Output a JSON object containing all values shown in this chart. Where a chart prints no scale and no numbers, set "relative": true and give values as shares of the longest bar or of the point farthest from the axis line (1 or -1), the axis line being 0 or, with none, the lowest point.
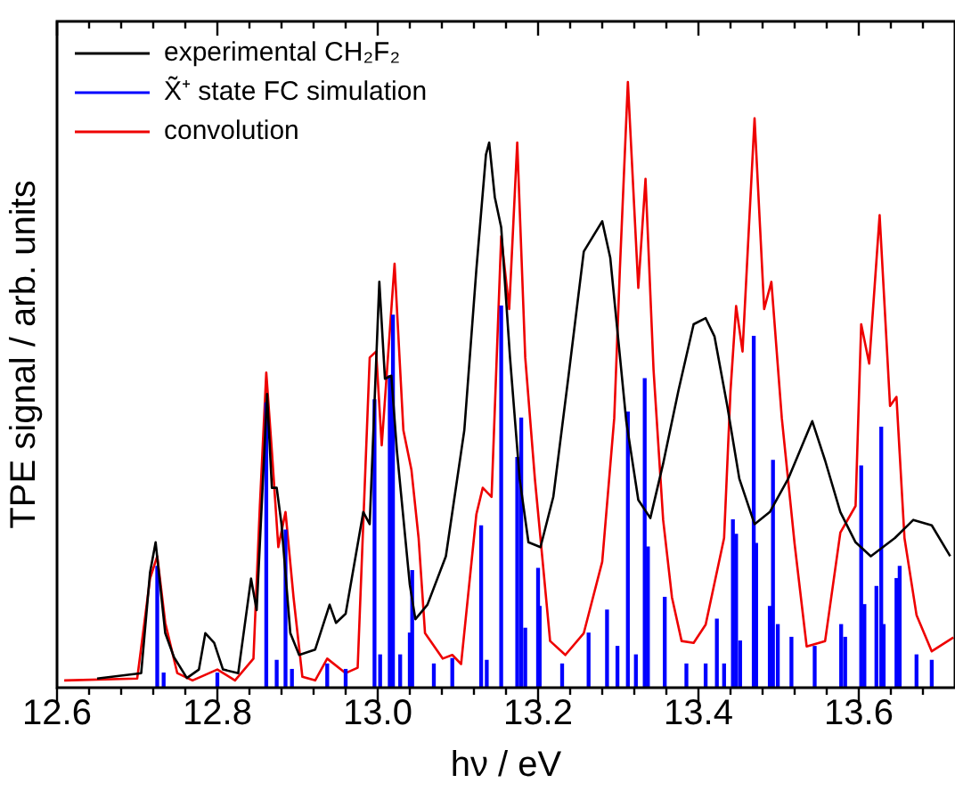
{
  "chart_data": {
    "type": "line",
    "relative": true,
    "xlabel": "hν / eV",
    "ylabel": "TPE signal / arb. units",
    "xlim": [
      12.6,
      13.72
    ],
    "xticks": [
      {
        "value": 12.6,
        "label": "12.6"
      },
      {
        "value": 12.64,
        "label": null
      },
      {
        "value": 12.68,
        "label": null
      },
      {
        "value": 12.72,
        "label": null
      },
      {
        "value": 12.76,
        "label": null
      },
      {
        "value": 12.8,
        "label": "12.8"
      },
      {
        "value": 12.84,
        "label": null
      },
      {
        "value": 12.88,
        "label": null
      },
      {
        "value": 12.92,
        "label": null
      },
      {
        "value": 12.96,
        "label": null
      },
      {
        "value": 13,
        "label": "13.0"
      },
      {
        "value": 13.04,
        "label": null
      },
      {
        "value": 13.08,
        "label": null
      },
      {
        "value": 13.12,
        "label": null
      },
      {
        "value": 13.16,
        "label": null
      },
      {
        "value": 13.2,
        "label": "13.2"
      },
      {
        "value": 13.24,
        "label": null
      },
      {
        "value": 13.28,
        "label": null
      },
      {
        "value": 13.32,
        "label": null
      },
      {
        "value": 13.36,
        "label": null
      },
      {
        "value": 13.4,
        "label": "13.4"
      },
      {
        "value": 13.44,
        "label": null
      },
      {
        "value": 13.48,
        "label": null
      },
      {
        "value": 13.52,
        "label": null
      },
      {
        "value": 13.56,
        "label": null
      },
      {
        "value": 13.6,
        "label": "13.6"
      },
      {
        "value": 13.64,
        "label": null
      },
      {
        "value": 13.68,
        "label": null
      }
    ],
    "grid": false,
    "legend": "top left",
    "marker": "none",
    "line_style": "solid",
    "series": [
      {
        "name": "experimental CH₂F₂",
        "color": "#000000",
        "x": [
          12.65,
          12.705,
          12.716,
          12.723,
          12.735,
          12.746,
          12.762,
          12.777,
          12.785,
          12.796,
          12.807,
          12.826,
          12.842,
          12.849,
          12.862,
          12.868,
          12.874,
          12.88,
          12.891,
          12.902,
          12.922,
          12.94,
          12.948,
          12.96,
          12.982,
          12.99,
          13.002,
          13.009,
          13.017,
          13.024,
          13.04,
          13.047,
          13.062,
          13.085,
          13.108,
          13.123,
          13.135,
          13.139,
          13.146,
          13.154,
          13.165,
          13.177,
          13.188,
          13.203,
          13.219,
          13.238,
          13.257,
          13.28,
          13.29,
          13.31,
          13.325,
          13.34,
          13.356,
          13.375,
          13.394,
          13.409,
          13.42,
          13.436,
          13.451,
          13.47,
          13.489,
          13.512,
          13.531,
          13.542,
          13.558,
          13.577,
          13.596,
          13.615,
          13.645,
          13.668,
          13.691,
          13.714
        ],
        "values": [
          0.015,
          0.024,
          0.19,
          0.24,
          0.09,
          0.05,
          0.016,
          0.03,
          0.09,
          0.074,
          0.03,
          0.024,
          0.18,
          0.128,
          0.485,
          0.33,
          0.33,
          0.27,
          0.09,
          0.054,
          0.063,
          0.137,
          0.107,
          0.122,
          0.29,
          0.27,
          0.67,
          0.51,
          0.515,
          0.39,
          0.17,
          0.113,
          0.137,
          0.217,
          0.425,
          0.69,
          0.88,
          0.9,
          0.81,
          0.76,
          0.545,
          0.345,
          0.24,
          0.232,
          0.315,
          0.515,
          0.72,
          0.77,
          0.71,
          0.44,
          0.31,
          0.28,
          0.37,
          0.49,
          0.6,
          0.61,
          0.58,
          0.465,
          0.345,
          0.27,
          0.29,
          0.345,
          0.405,
          0.44,
          0.375,
          0.29,
          0.24,
          0.217,
          0.247,
          0.277,
          0.268,
          0.217
        ]
      },
      {
        "name": "X̃⁺ state FC simulation",
        "type": "bar",
        "color": "#0000ff",
        "x": [
          12.725,
          12.733,
          12.8,
          12.861,
          12.874,
          12.885,
          12.893,
          12.937,
          12.96,
          12.996,
          13.003,
          13.015,
          13.019,
          13.028,
          13.04,
          13.043,
          13.07,
          13.093,
          13.129,
          13.136,
          13.154,
          13.174,
          13.179,
          13.184,
          13.2,
          13.202,
          13.23,
          13.263,
          13.286,
          13.299,
          13.312,
          13.322,
          13.333,
          13.337,
          13.358,
          13.385,
          13.409,
          13.423,
          13.432,
          13.443,
          13.447,
          13.452,
          13.469,
          13.472,
          13.489,
          13.493,
          13.499,
          13.516,
          13.545,
          13.578,
          13.583,
          13.603,
          13.607,
          13.622,
          13.628,
          13.631,
          13.647,
          13.651,
          13.672,
          13.691
        ],
        "values": [
          0.2,
          0.024,
          0.024,
          0.47,
          0.045,
          0.26,
          0.03,
          0.039,
          0.03,
          0.475,
          0.054,
          0.515,
          0.615,
          0.054,
          0.09,
          0.193,
          0.039,
          0.048,
          0.267,
          0.045,
          0.63,
          0.38,
          0.445,
          0.098,
          0.197,
          0.134,
          0.039,
          0.09,
          0.128,
          0.068,
          0.455,
          0.054,
          0.51,
          0.232,
          0.149,
          0.039,
          0.039,
          0.113,
          0.039,
          0.277,
          0.253,
          0.077,
          0.58,
          0.238,
          0.134,
          0.375,
          0.104,
          0.083,
          0.068,
          0.104,
          0.083,
          0.366,
          0.137,
          0.167,
          0.43,
          0.104,
          0.18,
          0.2,
          0.054,
          0.045
        ]
      },
      {
        "name": "convolution",
        "color": "#ee0000",
        "x": [
          12.609,
          12.7,
          12.716,
          12.725,
          12.735,
          12.75,
          12.769,
          12.8,
          12.822,
          12.845,
          12.853,
          12.861,
          12.868,
          12.876,
          12.885,
          12.895,
          12.906,
          12.922,
          12.937,
          12.96,
          12.975,
          12.99,
          12.998,
          13.005,
          13.021,
          13.032,
          13.042,
          13.051,
          13.059,
          13.081,
          13.093,
          13.104,
          13.123,
          13.131,
          13.142,
          13.154,
          13.164,
          13.174,
          13.184,
          13.196,
          13.203,
          13.215,
          13.234,
          13.257,
          13.28,
          13.295,
          13.302,
          13.312,
          13.325,
          13.334,
          13.344,
          13.356,
          13.367,
          13.379,
          13.394,
          13.409,
          13.432,
          13.44,
          13.447,
          13.455,
          13.47,
          13.482,
          13.491,
          13.504,
          13.52,
          13.535,
          13.558,
          13.577,
          13.596,
          13.603,
          13.613,
          13.626,
          13.639,
          13.647,
          13.657,
          13.672,
          13.691,
          13.718
        ],
        "values": [
          0.012,
          0.015,
          0.18,
          0.217,
          0.107,
          0.024,
          0.012,
          0.03,
          0.012,
          0.048,
          0.3,
          0.52,
          0.39,
          0.232,
          0.29,
          0.149,
          0.018,
          0.012,
          0.048,
          0.024,
          0.033,
          0.545,
          0.555,
          0.4,
          0.7,
          0.425,
          0.36,
          0.247,
          0.09,
          0.048,
          0.054,
          0.039,
          0.286,
          0.33,
          0.315,
          0.745,
          0.625,
          0.9,
          0.545,
          0.345,
          0.247,
          0.077,
          0.054,
          0.09,
          0.208,
          0.445,
          0.69,
          1.0,
          0.66,
          0.84,
          0.525,
          0.277,
          0.149,
          0.077,
          0.074,
          0.104,
          0.247,
          0.49,
          0.63,
          0.555,
          0.94,
          0.625,
          0.67,
          0.445,
          0.237,
          0.068,
          0.077,
          0.256,
          0.3,
          0.6,
          0.535,
          0.78,
          0.465,
          0.48,
          0.247,
          0.12,
          0.06,
          0.083
        ]
      }
    ]
  }
}
